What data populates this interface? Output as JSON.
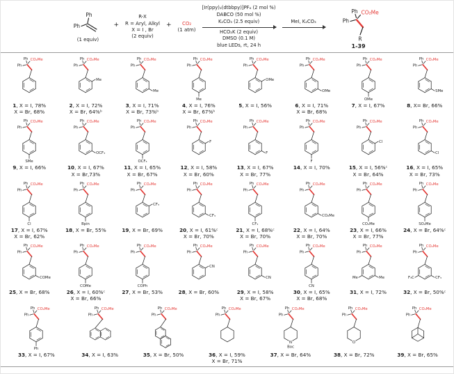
{
  "colors": {
    "accent_red": "#e53935",
    "text": "#1a1a1a",
    "rule": "#9a9a9a"
  },
  "core": {
    "ph": "Ph",
    "ester": "CO₂Me"
  },
  "scheme": {
    "plus": "+",
    "alkene": {
      "ph_top": "Ph",
      "ph_left": "Ph",
      "equiv": "(1 equiv)"
    },
    "rx": {
      "formula": "R-X",
      "r_def": "R = Aryl, Alkyl",
      "x_def": "X = I , Br",
      "equiv": "(2 equiv)"
    },
    "co2": {
      "formula": "CO₂",
      "pressure": "(1 atm)"
    },
    "conditions_above": [
      "[Ir(ppy)₂(dtbbpy)]PF₆ (2 mol %)",
      "DABCO (50 mol %)",
      "K₂CO₃ (2.5 equiv)"
    ],
    "conditions_below": [
      "HCO₂K (2 equiv)",
      "DMSO (0.1 M)",
      "blue LEDs, rt, 24 h"
    ],
    "arrow2_label": "MeI, K₂CO₃",
    "product": {
      "ph_top": "Ph",
      "ph_left": "Ph",
      "ester": "CO₂Me",
      "r": "R",
      "range": "1-39"
    }
  },
  "rows": [
    8,
    8,
    8,
    8,
    7
  ],
  "compounds": [
    {
      "num": "1",
      "lines": [
        "X = I, 78%",
        "X = Br, 68%"
      ],
      "ring": "benzene",
      "subs": []
    },
    {
      "num": "2",
      "lines": [
        "X = I, 72%",
        "X = Br, 64%ᵇ"
      ],
      "ring": "benzene",
      "subs": [
        {
          "pos": "ortho",
          "label": "Me"
        }
      ]
    },
    {
      "num": "3",
      "lines": [
        "X = I, 71%",
        "X = Br, 73%ᵇ"
      ],
      "ring": "benzene",
      "subs": [
        {
          "pos": "meta",
          "label": "Me"
        }
      ]
    },
    {
      "num": "4",
      "lines": [
        "X = I, 76%",
        "X = Br, 67%ᵇ"
      ],
      "ring": "benzene",
      "subs": [
        {
          "pos": "para",
          "label": "Me"
        }
      ]
    },
    {
      "num": "5",
      "lines": [
        "X = I, 56%"
      ],
      "ring": "benzene",
      "subs": [
        {
          "pos": "ortho",
          "label": "OMe"
        }
      ]
    },
    {
      "num": "6",
      "lines": [
        "X = I, 71%",
        "X = Br, 68%"
      ],
      "ring": "benzene",
      "subs": [
        {
          "pos": "meta",
          "label": "OMe"
        }
      ]
    },
    {
      "num": "7",
      "lines": [
        "X = I, 67%"
      ],
      "ring": "benzene",
      "subs": [
        {
          "pos": "para",
          "label": "OMe"
        }
      ]
    },
    {
      "num": "8",
      "lines": [
        "X= Br, 66%"
      ],
      "ring": "benzene",
      "subs": [
        {
          "pos": "meta",
          "label": "SMe"
        }
      ]
    },
    {
      "num": "9",
      "lines": [
        "X = I, 66%"
      ],
      "ring": "benzene",
      "subs": [
        {
          "pos": "para",
          "label": "SMe"
        }
      ]
    },
    {
      "num": "10",
      "lines": [
        "X = I, 67%",
        "X = Br,73%"
      ],
      "ring": "benzene",
      "subs": [
        {
          "pos": "meta",
          "label": "OCF₃"
        }
      ]
    },
    {
      "num": "11",
      "lines": [
        "X = I, 65%",
        "X = Br, 67%"
      ],
      "ring": "benzene",
      "subs": [
        {
          "pos": "para",
          "label": "OCF₃"
        }
      ]
    },
    {
      "num": "12",
      "lines": [
        "X = I, 58%",
        "X = Br, 60%"
      ],
      "ring": "benzene",
      "subs": [
        {
          "pos": "ortho",
          "label": "F"
        }
      ]
    },
    {
      "num": "13",
      "lines": [
        "X = I, 67%",
        "X = Br, 77%"
      ],
      "ring": "benzene",
      "subs": [
        {
          "pos": "meta",
          "label": "F"
        }
      ]
    },
    {
      "num": "14",
      "lines": [
        "X = I, 70%"
      ],
      "ring": "benzene",
      "subs": [
        {
          "pos": "para",
          "label": "F"
        }
      ]
    },
    {
      "num": "15",
      "lines": [
        "X = I, 56%ᶜ",
        "X = Br, 64%"
      ],
      "ring": "benzene",
      "subs": [
        {
          "pos": "ortho",
          "label": "Cl"
        }
      ]
    },
    {
      "num": "16",
      "lines": [
        "X = I, 65%",
        "X = Br, 73%"
      ],
      "ring": "benzene",
      "subs": [
        {
          "pos": "meta",
          "label": "Cl"
        }
      ]
    },
    {
      "num": "17",
      "lines": [
        "X = I, 67%",
        "X = Br, 62%"
      ],
      "ring": "benzene",
      "subs": [
        {
          "pos": "para",
          "label": "Cl"
        }
      ]
    },
    {
      "num": "18",
      "lines": [
        "X = Br, 55%"
      ],
      "ring": "benzene",
      "subs": [
        {
          "pos": "para",
          "label": "Bpin"
        }
      ]
    },
    {
      "num": "19",
      "lines": [
        "X = Br, 69%"
      ],
      "ring": "benzene",
      "subs": [
        {
          "pos": "ortho",
          "label": "CF₃"
        }
      ]
    },
    {
      "num": "20",
      "lines": [
        "X = I, 61%ᶜ",
        "X = Br, 70%"
      ],
      "ring": "benzene",
      "subs": [
        {
          "pos": "meta",
          "label": "CF₃"
        }
      ]
    },
    {
      "num": "21",
      "lines": [
        "X = I, 68%ᶜ",
        "X = Br, 70%"
      ],
      "ring": "benzene",
      "subs": [
        {
          "pos": "para",
          "label": "CF₃"
        }
      ]
    },
    {
      "num": "22",
      "lines": [
        "X = I, 64%",
        "X = Br, 70%"
      ],
      "ring": "benzene",
      "subs": [
        {
          "pos": "meta",
          "label": "CO₂Me"
        }
      ]
    },
    {
      "num": "23",
      "lines": [
        "X = I, 66%",
        "X = Br, 77%"
      ],
      "ring": "benzene",
      "subs": [
        {
          "pos": "para",
          "label": "CO₂Me"
        }
      ]
    },
    {
      "num": "24",
      "lines": [
        "X = Br, 64%ᶜ"
      ],
      "ring": "benzene",
      "subs": [
        {
          "pos": "para",
          "label": "SO₂Me"
        }
      ]
    },
    {
      "num": "25",
      "lines": [
        "X = Br, 68%"
      ],
      "ring": "benzene",
      "subs": [
        {
          "pos": "meta",
          "label": "COMe"
        }
      ]
    },
    {
      "num": "26",
      "lines": [
        "X = I, 60%ᶜ",
        "X = Br, 66%"
      ],
      "ring": "benzene",
      "subs": [
        {
          "pos": "para",
          "label": "COMe"
        }
      ]
    },
    {
      "num": "27",
      "lines": [
        "X = Br, 53%"
      ],
      "ring": "benzene",
      "subs": [
        {
          "pos": "para",
          "label": "COPh"
        }
      ]
    },
    {
      "num": "28",
      "lines": [
        "X = Br, 60%"
      ],
      "ring": "benzene",
      "subs": [
        {
          "pos": "ortho",
          "label": "CN"
        }
      ]
    },
    {
      "num": "29",
      "lines": [
        "X = I, 58%",
        "X = Br, 67%"
      ],
      "ring": "benzene",
      "subs": [
        {
          "pos": "meta",
          "label": "CN"
        }
      ]
    },
    {
      "num": "30",
      "lines": [
        "X = I, 65%",
        "X = Br, 68%"
      ],
      "ring": "benzene",
      "subs": [
        {
          "pos": "para",
          "label": "CN"
        }
      ]
    },
    {
      "num": "31",
      "lines": [
        "X = I, 72%"
      ],
      "ring": "benzene",
      "subs": [
        {
          "pos": "meta",
          "label": "Me"
        },
        {
          "pos": "meta2",
          "label": "Me"
        }
      ]
    },
    {
      "num": "32",
      "lines": [
        "X = Br, 50%ᶜ"
      ],
      "ring": "benzene",
      "subs": [
        {
          "pos": "meta",
          "label": "CF₃"
        },
        {
          "pos": "meta2",
          "label": "F₃C"
        }
      ]
    },
    {
      "num": "33",
      "lines": [
        "X = I, 67%"
      ],
      "ring": "benzene",
      "subs": [
        {
          "pos": "para",
          "label": "Ph"
        }
      ]
    },
    {
      "num": "34",
      "lines": [
        "X = I, 63%"
      ],
      "ring": "naphthalene1",
      "subs": []
    },
    {
      "num": "35",
      "lines": [
        "X = Br, 50%"
      ],
      "ring": "naphthalene2",
      "subs": []
    },
    {
      "num": "36",
      "lines": [
        "X = I, 59%",
        "X = Br, 71%"
      ],
      "ring": "cyclohexane",
      "subs": []
    },
    {
      "num": "37",
      "lines": [
        "X = Br, 64%"
      ],
      "ring": "piperidine",
      "hetero": "N",
      "heteroSub": "Boc",
      "subs": []
    },
    {
      "num": "38",
      "lines": [
        "X = Br, 72%"
      ],
      "ring": "thp",
      "hetero": "O",
      "subs": []
    },
    {
      "num": "39",
      "lines": [
        "X = Br, 65%"
      ],
      "ring": "adamantane",
      "subs": []
    }
  ]
}
